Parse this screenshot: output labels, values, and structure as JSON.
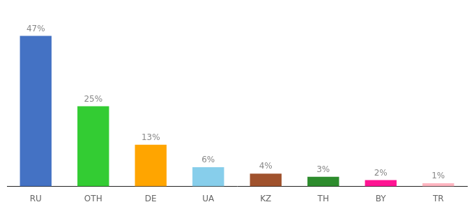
{
  "chart_data": {
    "type": "bar",
    "categories": [
      "RU",
      "OTH",
      "DE",
      "UA",
      "KZ",
      "TH",
      "BY",
      "TR"
    ],
    "values": [
      47,
      25,
      13,
      6,
      4,
      3,
      2,
      1
    ],
    "value_labels": [
      "47%",
      "25%",
      "13%",
      "6%",
      "4%",
      "3%",
      "2%",
      "1%"
    ],
    "colors": [
      "#4472C4",
      "#33CC33",
      "#FFA500",
      "#87CEEB",
      "#A0522D",
      "#2D8C2D",
      "#FF1493",
      "#FFB6C1"
    ],
    "ylim": [
      0,
      56
    ],
    "data_labels": true,
    "tick_labels": "x",
    "grid": false
  }
}
